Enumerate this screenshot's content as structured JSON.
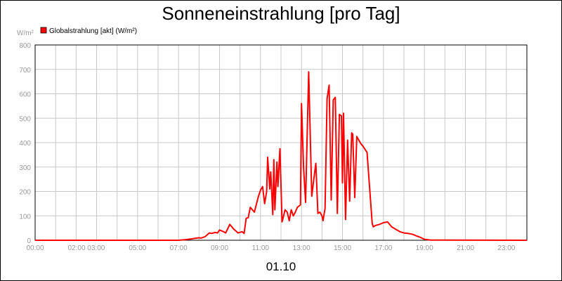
{
  "chart_data": {
    "type": "line",
    "title": "Sonneneinstrahlung [pro Tag]",
    "ylabel": "W/m²",
    "xlabel": "01.10",
    "ylim": [
      0,
      800
    ],
    "xlim": [
      0,
      24
    ],
    "y_ticks": [
      "0",
      "100",
      "200",
      "300",
      "400",
      "500",
      "600",
      "700",
      "800"
    ],
    "x_ticks": [
      {
        "label": "00:00",
        "x": 0
      },
      {
        "label": "02:00 03:00",
        "x": 2.5
      },
      {
        "label": "05:00",
        "x": 5
      },
      {
        "label": "07:00",
        "x": 7
      },
      {
        "label": "09:00",
        "x": 9
      },
      {
        "label": "11:00",
        "x": 11
      },
      {
        "label": "13:00",
        "x": 13
      },
      {
        "label": "15:00",
        "x": 15
      },
      {
        "label": "17:00",
        "x": 17
      },
      {
        "label": "19:00",
        "x": 19
      },
      {
        "label": "21:00",
        "x": 21
      },
      {
        "label": "23:00",
        "x": 23
      }
    ],
    "grid": true,
    "legend_position": "top-left",
    "series": [
      {
        "name": "Globalstrahlung [akt] (W/m²)",
        "color": "#ff0000",
        "x": [
          0,
          7.0,
          7.3,
          7.6,
          7.8,
          8.0,
          8.1,
          8.3,
          8.5,
          8.6,
          8.8,
          8.9,
          9.0,
          9.2,
          9.3,
          9.5,
          9.7,
          9.8,
          9.9,
          10.1,
          10.2,
          10.3,
          10.4,
          10.5,
          10.7,
          10.9,
          11.0,
          11.1,
          11.2,
          11.3,
          11.35,
          11.45,
          11.5,
          11.6,
          11.65,
          11.7,
          11.8,
          11.85,
          11.95,
          12.05,
          12.1,
          12.2,
          12.3,
          12.4,
          12.5,
          12.6,
          12.7,
          12.8,
          12.95,
          13.0,
          13.1,
          13.2,
          13.35,
          13.5,
          13.6,
          13.7,
          13.8,
          13.9,
          14.0,
          14.05,
          14.15,
          14.25,
          14.35,
          14.45,
          14.55,
          14.65,
          14.75,
          14.85,
          14.95,
          15.0,
          15.05,
          15.15,
          15.25,
          15.35,
          15.45,
          15.5,
          15.6,
          15.7,
          15.8,
          15.9,
          16.0,
          16.2,
          16.45,
          16.5,
          16.6,
          16.8,
          17.0,
          17.2,
          17.4,
          17.6,
          17.8,
          18.0,
          18.2,
          18.4,
          18.6,
          18.8,
          19.0,
          19.3,
          24.0
        ],
        "values": [
          0,
          0,
          2,
          5,
          8,
          10,
          9,
          15,
          30,
          28,
          32,
          30,
          42,
          35,
          30,
          65,
          45,
          38,
          30,
          35,
          28,
          90,
          92,
          135,
          115,
          180,
          205,
          220,
          150,
          200,
          340,
          210,
          280,
          105,
          330,
          125,
          320,
          220,
          375,
          75,
          90,
          125,
          115,
          80,
          125,
          100,
          115,
          135,
          145,
          560,
          300,
          155,
          690,
          180,
          250,
          315,
          110,
          115,
          100,
          80,
          130,
          580,
          635,
          165,
          575,
          585,
          110,
          515,
          510,
          235,
          520,
          85,
          410,
          160,
          440,
          435,
          175,
          425,
          410,
          395,
          385,
          360,
          70,
          55,
          60,
          65,
          72,
          75,
          55,
          45,
          35,
          30,
          28,
          25,
          18,
          12,
          4,
          1,
          0
        ]
      }
    ]
  }
}
